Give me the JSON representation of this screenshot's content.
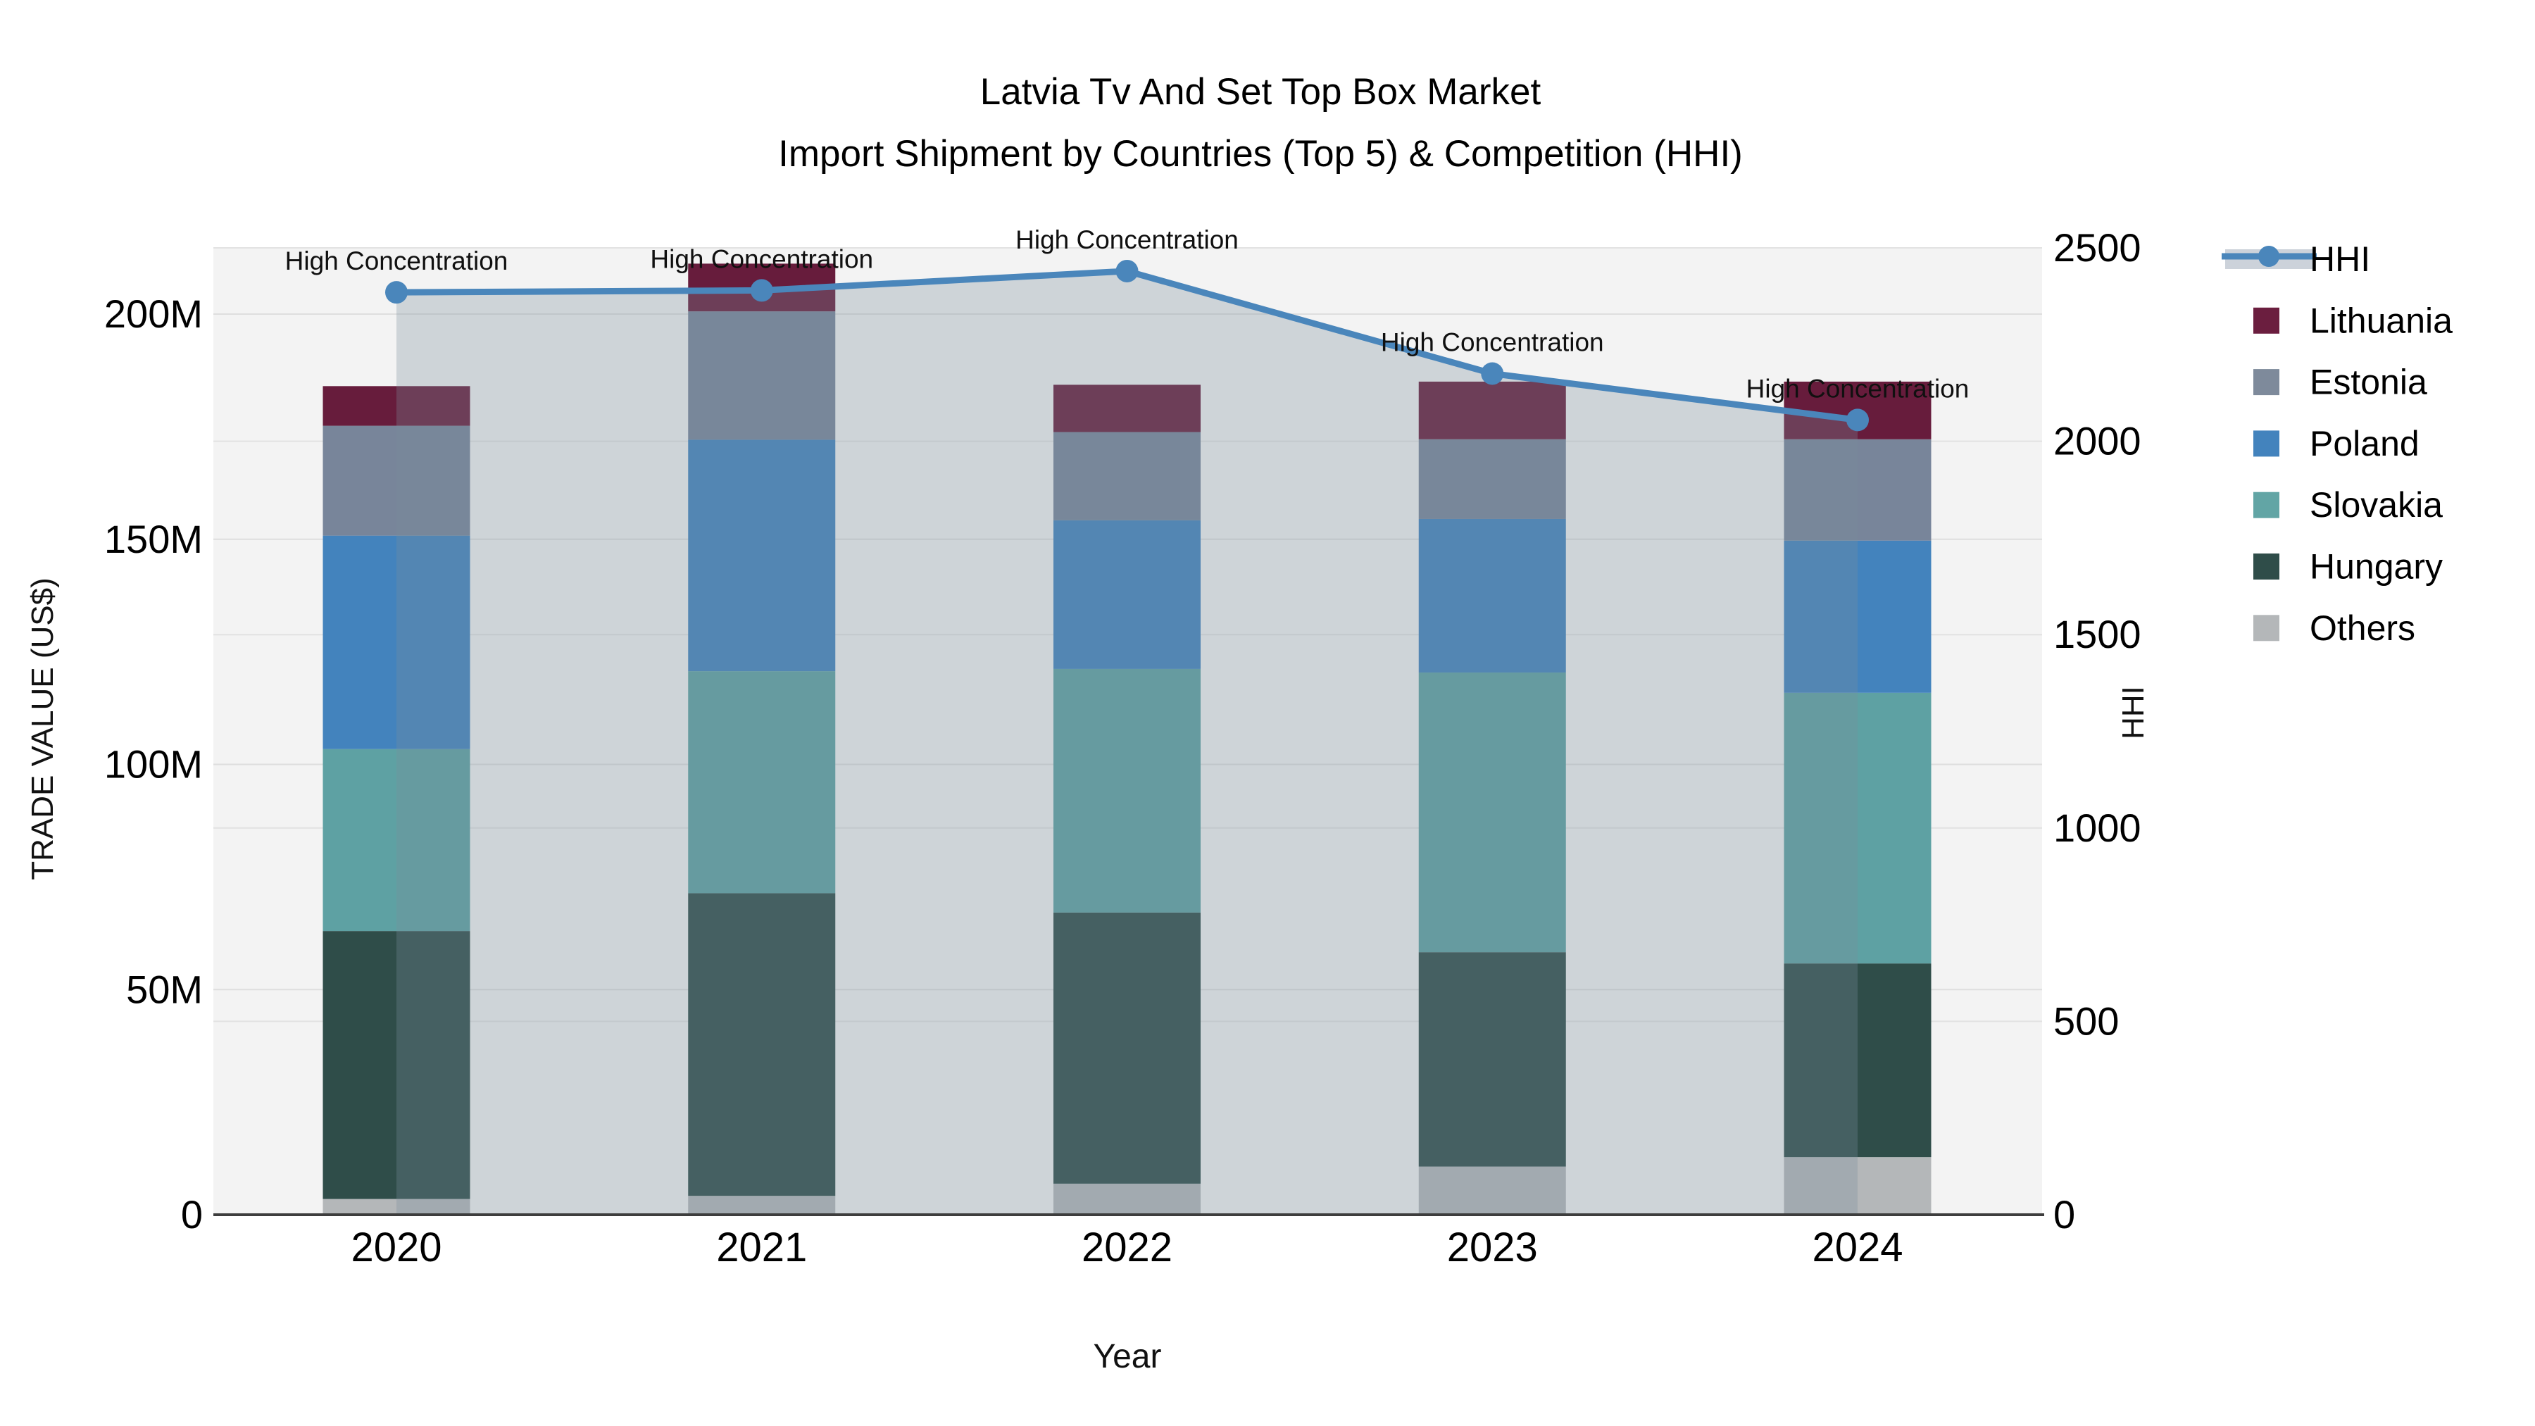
{
  "title": {
    "line1": "Latvia Tv And Set Top Box Market",
    "line2": "Import Shipment by Countries (Top 5) & Competition (HHI)"
  },
  "axes": {
    "x": {
      "title": "Year",
      "ticks": [
        "2020",
        "2021",
        "2022",
        "2023",
        "2024"
      ]
    },
    "y_left": {
      "title": "TRADE VALUE (US$)",
      "ticks": [
        "0",
        "50M",
        "100M",
        "150M",
        "200M"
      ],
      "tick_values": [
        0,
        50,
        100,
        150,
        200
      ]
    },
    "y_right": {
      "title": "HHI",
      "ticks": [
        "0",
        "500",
        "1000",
        "1500",
        "2000",
        "2500"
      ],
      "tick_values": [
        0,
        500,
        1000,
        1500,
        2000,
        2500
      ]
    }
  },
  "legend": {
    "items": [
      {
        "label": "HHI",
        "type": "line",
        "color": "#4a86bb",
        "band_color": "#ccd2da"
      },
      {
        "label": "Lithuania",
        "type": "swatch",
        "color": "#6b1e3f"
      },
      {
        "label": "Estonia",
        "type": "swatch",
        "color": "#7e8a9b"
      },
      {
        "label": "Poland",
        "type": "swatch",
        "color": "#4383bd"
      },
      {
        "label": "Slovakia",
        "type": "swatch",
        "color": "#62a5a5"
      },
      {
        "label": "Hungary",
        "type": "swatch",
        "color": "#2f4d49"
      },
      {
        "label": "Others",
        "type": "swatch",
        "color": "#b4b7b9"
      }
    ]
  },
  "chart_data": {
    "type": "combo",
    "subtype": "stacked-bar-with-line",
    "categories": [
      "2020",
      "2021",
      "2022",
      "2023",
      "2024"
    ],
    "bar_value_unit": "M US$ (trade value, left axis)",
    "stack_order_bottom_to_top": [
      "Others",
      "Hungary",
      "Slovakia",
      "Poland",
      "Estonia",
      "Lithuania"
    ],
    "series": [
      {
        "name": "Others",
        "type": "bar",
        "color": "#b4b7b9",
        "values": [
          3.5,
          4.2,
          6.9,
          10.7,
          12.8
        ]
      },
      {
        "name": "Hungary",
        "type": "bar",
        "color": "#2f4d49",
        "values": [
          59.5,
          67.2,
          60.2,
          47.6,
          43.0
        ]
      },
      {
        "name": "Slovakia",
        "type": "bar",
        "color": "#5ea1a3",
        "values": [
          40.4,
          49.3,
          54.1,
          62.1,
          60.1
        ]
      },
      {
        "name": "Poland",
        "type": "bar",
        "color": "#4383bd",
        "values": [
          47.4,
          51.4,
          33.0,
          34.1,
          33.8
        ]
      },
      {
        "name": "Estonia",
        "type": "bar",
        "color": "#78859a",
        "values": [
          24.4,
          28.5,
          19.6,
          17.7,
          22.5
        ]
      },
      {
        "name": "Lithuania",
        "type": "bar",
        "color": "#671c3c",
        "values": [
          8.8,
          10.6,
          10.5,
          12.8,
          12.8
        ]
      },
      {
        "name": "HHI",
        "type": "line",
        "axis": "right",
        "color": "#4a86bb",
        "area_fill": "rgba(121,141,157,0.30)",
        "values": [
          2385,
          2390,
          2440,
          2175,
          2055
        ]
      }
    ],
    "bar_totals": [
      184.0,
      211.2,
      184.3,
      185.0,
      185.0
    ],
    "ylim_left": [
      0,
      214.7
    ],
    "ylim_right": [
      0,
      2500
    ],
    "grid": true,
    "legend_position": "right",
    "plot_background": "#f3f3f3",
    "annotations": [
      {
        "category": "2020",
        "text": "High Concentration"
      },
      {
        "category": "2021",
        "text": "High Concentration"
      },
      {
        "category": "2022",
        "text": "High Concentration"
      },
      {
        "category": "2023",
        "text": "High Concentration"
      },
      {
        "category": "2024",
        "text": "High Concentration"
      }
    ]
  }
}
